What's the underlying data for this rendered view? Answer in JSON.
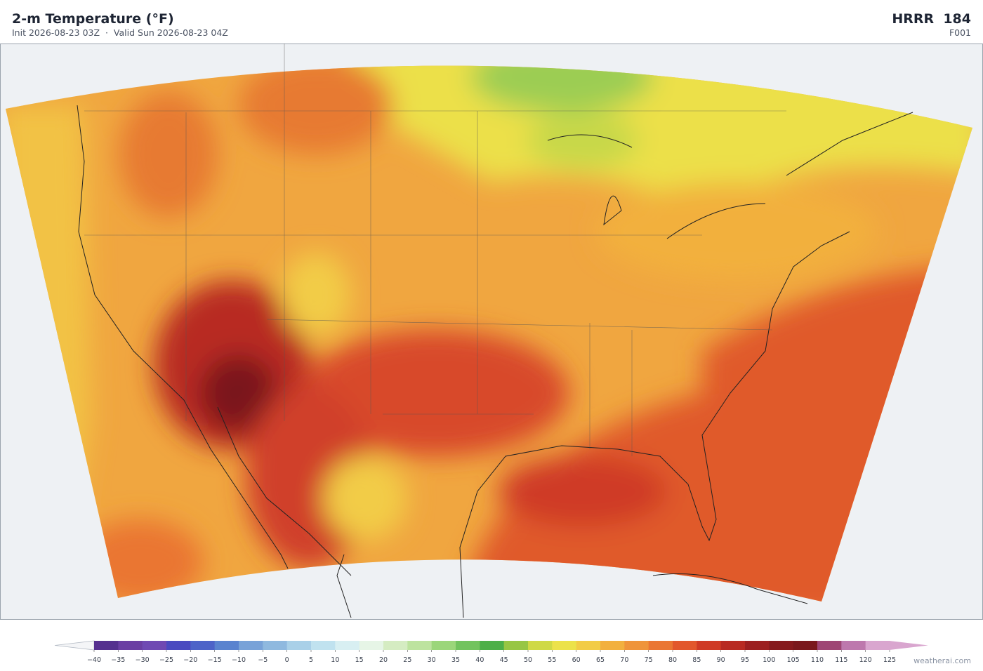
{
  "header": {
    "title": "2-m Temperature  (°F)",
    "subtitle": "Init 2026-08-23 03Z  ·  Valid Sun 2026-08-23 04Z",
    "model": "HRRR  184",
    "forecast_hour": "F001"
  },
  "colorbar": {
    "ticks": [
      {
        "value": -40,
        "label": "−40"
      },
      {
        "value": -35,
        "label": "−35"
      },
      {
        "value": -30,
        "label": "−30"
      },
      {
        "value": -25,
        "label": "−25"
      },
      {
        "value": -20,
        "label": "−20"
      },
      {
        "value": -15,
        "label": "−15"
      },
      {
        "value": -10,
        "label": "−10"
      },
      {
        "value": -5,
        "label": "−5"
      },
      0,
      5,
      10,
      15,
      20,
      25,
      30,
      35,
      40,
      45,
      50,
      55,
      60,
      65,
      70,
      75,
      80,
      85,
      90,
      95,
      100,
      105,
      110,
      115,
      120,
      125
    ],
    "colors": [
      "#55308f",
      "#6a3ea3",
      "#6f49b3",
      "#4a4ac0",
      "#4d63c8",
      "#5a83cf",
      "#78a2d8",
      "#8fb9df",
      "#a9d0e8",
      "#c0e2ef",
      "#d8eff2",
      "#e6f5e6",
      "#d5ecc2",
      "#bde39f",
      "#9bd67a",
      "#72c35e",
      "#4daf48",
      "#97c644",
      "#cfd945",
      "#ece24a",
      "#f2cc46",
      "#f2b03e",
      "#ef943a",
      "#ea7633",
      "#e2572c",
      "#cf3a25",
      "#b82a22",
      "#9c1f20",
      "#861a1d",
      "#7a181c",
      "#9e4574",
      "#bd78ad",
      "#d9a6cf"
    ]
  },
  "footer": {
    "credit": "weatherai.com"
  }
}
